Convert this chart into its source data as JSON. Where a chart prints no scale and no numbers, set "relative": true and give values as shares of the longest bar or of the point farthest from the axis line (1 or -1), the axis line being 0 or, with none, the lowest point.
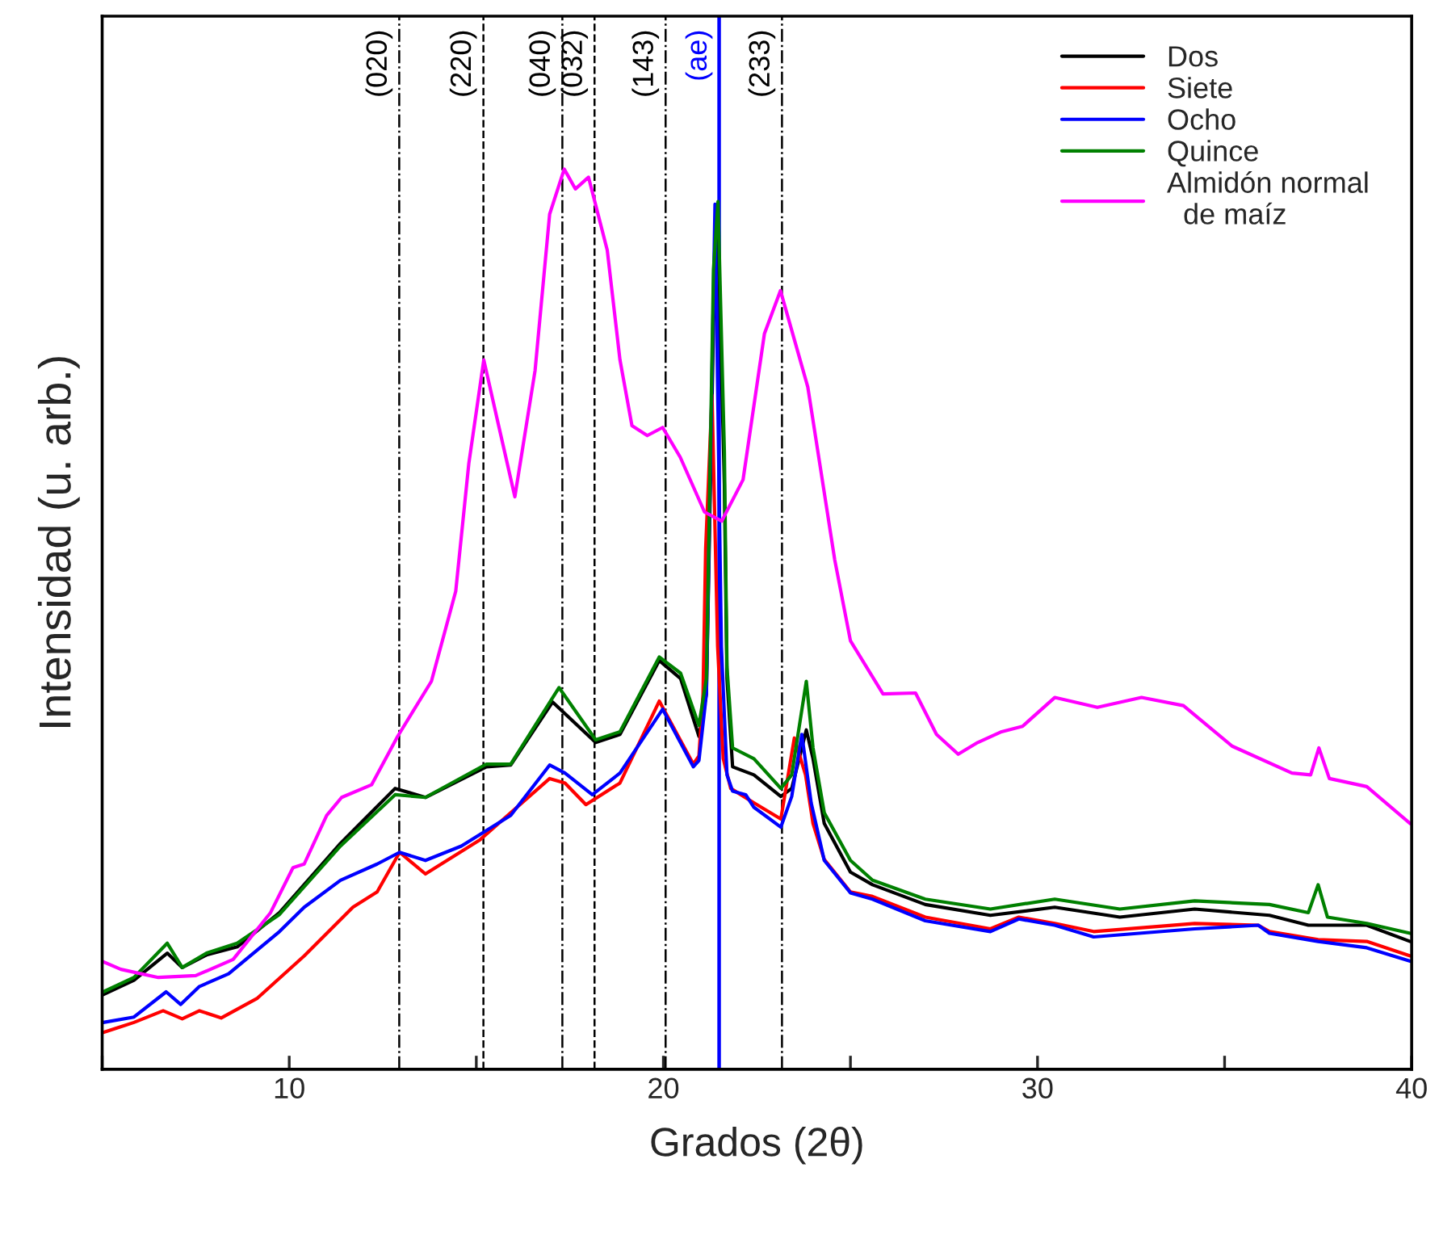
{
  "chart_data": {
    "type": "line",
    "relative": true,
    "xlabel": "Grados (2θ)",
    "ylabel": "Intensidad (u. arb.)",
    "xlim": [
      5,
      40
    ],
    "xticks": [
      {
        "value": 5,
        "label": null
      },
      10,
      {
        "value": 15,
        "label": null
      },
      20,
      {
        "value": 25,
        "label": null
      },
      30,
      {
        "value": 35,
        "label": null
      },
      40
    ],
    "tick_labels": "x",
    "grid": false,
    "legend": "top right",
    "marker": "none",
    "line_style": "solid",
    "ref_lines": [
      {
        "axis": "x",
        "value": 12.94,
        "color": "#000000",
        "line_style": "dashdot"
      },
      {
        "axis": "x",
        "value": 15.19,
        "color": "#000000",
        "line_style": "dashed"
      },
      {
        "axis": "x",
        "value": 17.3,
        "color": "#000000",
        "line_style": "dashdot"
      },
      {
        "axis": "x",
        "value": 18.16,
        "color": "#000000",
        "line_style": "dashed"
      },
      {
        "axis": "x",
        "value": 20.06,
        "color": "#000000",
        "line_style": "dashdot"
      },
      {
        "axis": "x",
        "value": 21.49,
        "color": "#0000ff",
        "line_style": "solid"
      },
      {
        "axis": "x",
        "value": 23.17,
        "color": "#000000",
        "line_style": "dashdot"
      }
    ],
    "annotations": [
      {
        "text": "(020)",
        "x": 12.94
      },
      {
        "text": "(220)",
        "x": 15.19
      },
      {
        "text": "(040)",
        "x": 17.3
      },
      {
        "text": "(032)",
        "x": 18.16
      },
      {
        "text": "(143)",
        "x": 20.06
      },
      {
        "text": "(ae)",
        "x": 21.49
      },
      {
        "text": "(233)",
        "x": 23.17
      }
    ],
    "series": [
      {
        "name": "Dos",
        "color": "#000000",
        "x": [
          5.03,
          5.85,
          6.74,
          7.14,
          7.79,
          8.61,
          9.74,
          11.37,
          12.83,
          13.64,
          15.27,
          15.92,
          17.04,
          18.19,
          18.84,
          19.89,
          20.46,
          20.95,
          21.15,
          21.34,
          21.46,
          21.63,
          21.7,
          21.85,
          22.42,
          23.14,
          23.43,
          23.82,
          24.0,
          24.3,
          25.0,
          25.59,
          27.0,
          28.74,
          30.46,
          32.2,
          34.2,
          36.2,
          37.24,
          38.8,
          39.96
        ],
        "values": [
          0.083,
          0.099,
          0.129,
          0.113,
          0.127,
          0.136,
          0.174,
          0.251,
          0.312,
          0.302,
          0.336,
          0.338,
          0.408,
          0.363,
          0.372,
          0.454,
          0.434,
          0.37,
          0.417,
          0.829,
          0.937,
          0.65,
          0.434,
          0.336,
          0.327,
          0.303,
          0.312,
          0.377,
          0.345,
          0.273,
          0.219,
          0.205,
          0.183,
          0.171,
          0.18,
          0.169,
          0.178,
          0.171,
          0.16,
          0.16,
          0.142
        ]
      },
      {
        "name": "Siete",
        "color": "#ff0000",
        "x": [
          5.03,
          5.85,
          6.63,
          7.14,
          7.6,
          8.18,
          9.15,
          10.4,
          11.7,
          12.35,
          12.95,
          13.64,
          15.1,
          16.96,
          17.37,
          17.93,
          18.84,
          19.89,
          20.8,
          20.95,
          21.06,
          21.13,
          21.3,
          21.45,
          21.6,
          21.8,
          22.42,
          23.14,
          23.5,
          23.8,
          24.0,
          24.3,
          25.0,
          25.59,
          27.0,
          28.74,
          29.5,
          30.46,
          31.5,
          34.2,
          35.9,
          36.2,
          37.5,
          38.8,
          39.96
        ],
        "values": [
          0.041,
          0.052,
          0.065,
          0.056,
          0.065,
          0.057,
          0.079,
          0.126,
          0.18,
          0.197,
          0.241,
          0.217,
          0.255,
          0.323,
          0.318,
          0.294,
          0.318,
          0.409,
          0.339,
          0.348,
          0.417,
          0.578,
          0.749,
          0.47,
          0.345,
          0.312,
          0.296,
          0.278,
          0.368,
          0.327,
          0.273,
          0.233,
          0.197,
          0.192,
          0.169,
          0.156,
          0.169,
          0.162,
          0.153,
          0.162,
          0.16,
          0.153,
          0.144,
          0.142,
          0.126
        ]
      },
      {
        "name": "Ocho",
        "color": "#0000ff",
        "x": [
          5.03,
          5.85,
          6.71,
          7.1,
          7.6,
          8.38,
          9.74,
          10.4,
          11.37,
          12.35,
          12.95,
          13.64,
          14.6,
          15.92,
          16.96,
          17.37,
          18.1,
          18.84,
          19.98,
          20.8,
          20.95,
          21.15,
          21.38,
          21.55,
          21.7,
          21.85,
          22.2,
          22.42,
          23.14,
          23.43,
          23.7,
          23.95,
          24.3,
          25.0,
          25.59,
          27.0,
          28.74,
          29.5,
          30.46,
          31.5,
          34.2,
          35.9,
          36.2,
          37.5,
          38.8,
          39.96
        ],
        "values": [
          0.052,
          0.058,
          0.086,
          0.072,
          0.092,
          0.106,
          0.153,
          0.18,
          0.21,
          0.228,
          0.241,
          0.232,
          0.248,
          0.282,
          0.338,
          0.329,
          0.305,
          0.329,
          0.4,
          0.336,
          0.343,
          0.417,
          0.961,
          0.47,
          0.327,
          0.309,
          0.305,
          0.291,
          0.269,
          0.303,
          0.372,
          0.296,
          0.232,
          0.196,
          0.189,
          0.165,
          0.153,
          0.167,
          0.16,
          0.147,
          0.156,
          0.16,
          0.151,
          0.142,
          0.135,
          0.12
        ]
      },
      {
        "name": "Quince",
        "color": "#008000",
        "x": [
          5.03,
          5.85,
          6.74,
          7.14,
          7.79,
          8.61,
          9.74,
          11.37,
          12.83,
          13.64,
          15.27,
          15.92,
          17.21,
          18.19,
          18.84,
          19.89,
          20.46,
          20.95,
          21.15,
          21.34,
          21.46,
          21.63,
          21.7,
          21.85,
          22.42,
          23.14,
          23.43,
          23.82,
          24.0,
          24.3,
          25.0,
          25.59,
          27.0,
          28.74,
          30.46,
          32.2,
          34.2,
          36.2,
          37.24,
          37.5,
          37.75,
          38.8,
          39.96
        ],
        "values": [
          0.086,
          0.102,
          0.14,
          0.113,
          0.129,
          0.14,
          0.172,
          0.248,
          0.305,
          0.302,
          0.339,
          0.339,
          0.424,
          0.366,
          0.375,
          0.458,
          0.44,
          0.382,
          0.434,
          0.889,
          0.964,
          0.686,
          0.447,
          0.357,
          0.345,
          0.312,
          0.327,
          0.431,
          0.357,
          0.285,
          0.232,
          0.21,
          0.189,
          0.178,
          0.189,
          0.178,
          0.187,
          0.183,
          0.174,
          0.205,
          0.169,
          0.162,
          0.151
        ]
      },
      {
        "name": "Almidón normal\n  de maíz",
        "color": "#ff00ff",
        "x": [
          5,
          5.5,
          6.5,
          7.5,
          8.5,
          9.5,
          10.1,
          10.4,
          11.0,
          11.4,
          12.2,
          12.9,
          13.8,
          14.45,
          14.8,
          15.2,
          15.57,
          16.03,
          16.57,
          16.96,
          17.35,
          17.65,
          18.0,
          18.5,
          18.84,
          19.16,
          19.57,
          19.98,
          20.45,
          21.1,
          21.56,
          22.13,
          22.7,
          23.13,
          23.86,
          24.58,
          25.0,
          25.87,
          26.74,
          27.3,
          27.88,
          28.4,
          29.04,
          29.6,
          30.46,
          31.6,
          32.78,
          33.9,
          35.2,
          36.8,
          37.3,
          37.52,
          37.8,
          38.8,
          39.96
        ],
        "values": [
          0.12,
          0.111,
          0.102,
          0.104,
          0.122,
          0.174,
          0.224,
          0.228,
          0.282,
          0.302,
          0.316,
          0.37,
          0.431,
          0.531,
          0.673,
          0.788,
          0.72,
          0.636,
          0.776,
          0.95,
          1.0,
          0.978,
          0.991,
          0.91,
          0.788,
          0.715,
          0.704,
          0.713,
          0.68,
          0.619,
          0.609,
          0.655,
          0.817,
          0.865,
          0.758,
          0.566,
          0.476,
          0.417,
          0.418,
          0.372,
          0.35,
          0.363,
          0.375,
          0.381,
          0.413,
          0.402,
          0.413,
          0.404,
          0.359,
          0.329,
          0.327,
          0.357,
          0.323,
          0.314,
          0.273
        ]
      }
    ]
  }
}
